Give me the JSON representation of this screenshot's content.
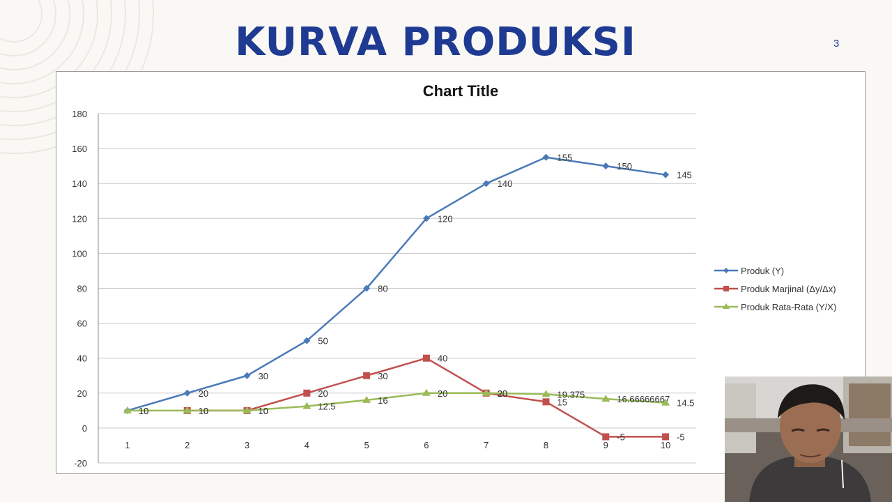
{
  "slide": {
    "title": "KURVA PRODUKSI",
    "page_number": "3"
  },
  "colors": {
    "title": "#1f3a93",
    "series_1": "#4a7ab8",
    "series_2": "#c0504d",
    "series_3": "#9bbb59",
    "grid": "#c8c8c8"
  },
  "chart_data": {
    "type": "line",
    "title": "Chart Title",
    "x": [
      "1",
      "2",
      "3",
      "4",
      "5",
      "6",
      "7",
      "8",
      "9",
      "10"
    ],
    "ylim": [
      -20,
      180
    ],
    "yticks": [
      -20,
      0,
      20,
      40,
      60,
      80,
      100,
      120,
      140,
      160,
      180
    ],
    "grid": true,
    "legend_position": "right",
    "series": [
      {
        "name": "Produk (Y)",
        "marker": "diamond",
        "values": [
          10,
          20,
          30,
          50,
          80,
          120,
          140,
          155,
          150,
          145
        ],
        "labels": [
          "10",
          "20",
          "30",
          "50",
          "80",
          "120",
          "140",
          "155",
          "150",
          "145"
        ]
      },
      {
        "name": "Produk Marjinal (Δy/Δx)",
        "marker": "square",
        "values": [
          null,
          10,
          10,
          20,
          30,
          40,
          20,
          15,
          -5,
          -5
        ],
        "labels": [
          "",
          "10",
          "10",
          "20",
          "30",
          "40",
          "20",
          "15",
          "-5",
          "-5"
        ]
      },
      {
        "name": "Produk Rata-Rata (Y/X)",
        "marker": "triangle",
        "values": [
          10,
          10,
          10,
          12.5,
          16,
          20,
          20,
          19.375,
          16.66666667,
          14.5
        ],
        "labels": [
          "10",
          "10",
          "10",
          "12.5",
          "16",
          "20",
          "20",
          "19.375",
          "16.66666667",
          "14.5"
        ]
      }
    ]
  }
}
